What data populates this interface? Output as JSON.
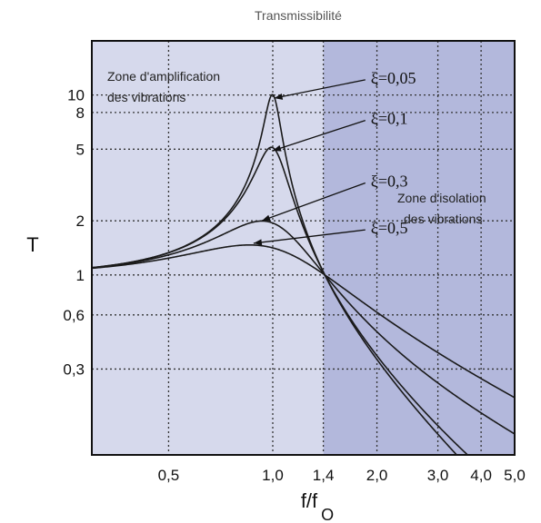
{
  "chart_data": {
    "type": "line",
    "title": "Transmissibilité",
    "xlabel": "f/f",
    "xlabel_sub": "O",
    "ylabel": "T",
    "x_scale": "log",
    "y_scale": "log",
    "xlim": [
      0.3,
      5.0
    ],
    "ylim": [
      0.1,
      20
    ],
    "x_ticks": [
      {
        "value": 0.5,
        "label": "0,5"
      },
      {
        "value": 1.0,
        "label": "1,0"
      },
      {
        "value": 1.4,
        "label": "1,4"
      },
      {
        "value": 2.0,
        "label": "2,0"
      },
      {
        "value": 3.0,
        "label": "3,0"
      },
      {
        "value": 4.0,
        "label": "4,0"
      },
      {
        "value": 5.0,
        "label": "5,0"
      }
    ],
    "y_ticks": [
      {
        "value": 0.3,
        "label": "0,3"
      },
      {
        "value": 0.6,
        "label": "0,6"
      },
      {
        "value": 1,
        "label": "1"
      },
      {
        "value": 2,
        "label": "2"
      },
      {
        "value": 5,
        "label": "5"
      },
      {
        "value": 8,
        "label": "8"
      },
      {
        "value": 10,
        "label": "10"
      }
    ],
    "grid": true,
    "isolation_start_x": 1.4,
    "series": [
      {
        "name": "ξ=0,05",
        "damping": 0.05,
        "label_anchor": [
          1.92,
          11.6
        ],
        "arrow_to": [
          1.01,
          9.6
        ]
      },
      {
        "name": "ξ=0,1",
        "damping": 0.1,
        "label_anchor": [
          1.92,
          6.9
        ],
        "arrow_to": [
          1.0,
          4.9
        ]
      },
      {
        "name": "ξ=0,3",
        "damping": 0.3,
        "label_anchor": [
          1.92,
          3.1
        ],
        "arrow_to": [
          0.93,
          2.0
        ]
      },
      {
        "name": "ξ=0,5",
        "damping": 0.5,
        "label_anchor": [
          1.92,
          1.7
        ],
        "arrow_to": [
          0.88,
          1.5
        ]
      }
    ],
    "annotations": {
      "amplification_line1": "Zone d'amplification",
      "amplification_line2": "des vibrations",
      "isolation_line1": "Zone d'isolation",
      "isolation_line2": "des vibrations"
    },
    "colors": {
      "amplification_zone": "#d6d9ec",
      "isolation_zone": "#b3b8dc",
      "curve": "#1a1a1a",
      "grid": "#333333"
    }
  }
}
